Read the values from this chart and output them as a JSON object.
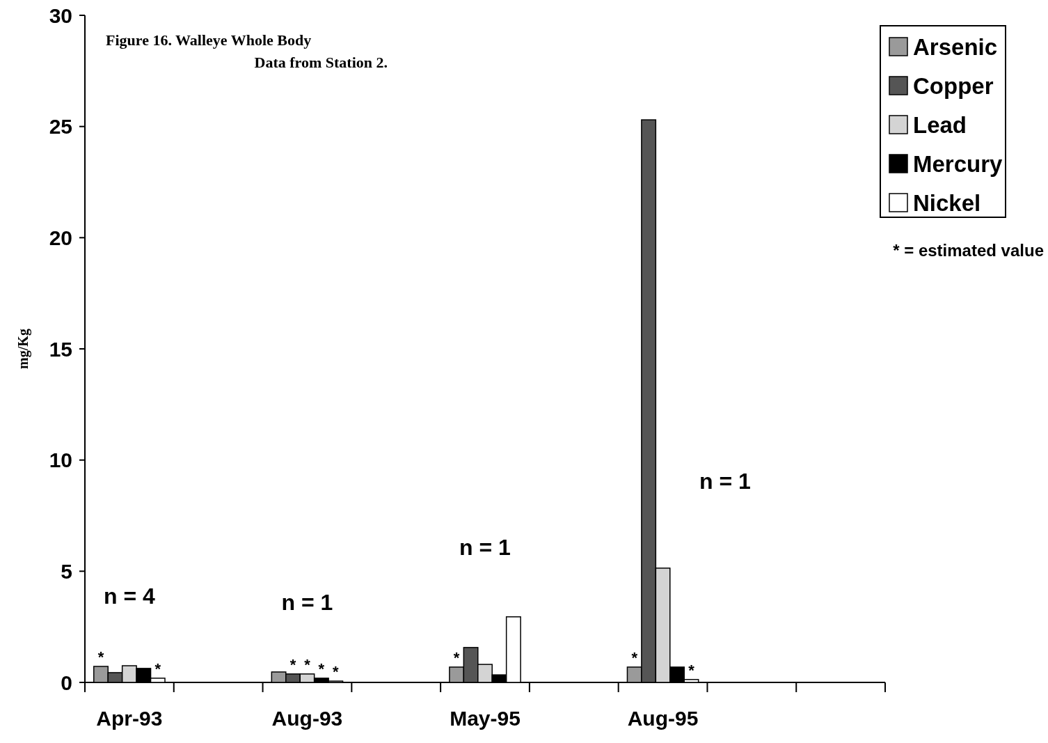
{
  "chart_data": {
    "type": "bar",
    "title": "Figure 16. Walleye Whole Body Data from Station 2.",
    "ylabel": "mg/Kg",
    "categories": [
      "Apr-93",
      null,
      "Aug-93",
      null,
      "May-95",
      null,
      "Aug-95",
      null,
      null
    ],
    "series": [
      {
        "name": "Arsenic",
        "color": "#9a9a9a",
        "values": [
          0.72,
          null,
          0.47,
          null,
          0.69,
          null,
          0.69,
          null,
          null
        ],
        "value_labels": [
          "*",
          null,
          null,
          null,
          "*",
          null,
          "*",
          null,
          null
        ]
      },
      {
        "name": "Copper",
        "color": "#555555",
        "values": [
          0.44,
          null,
          0.38,
          null,
          1.57,
          null,
          25.3,
          null,
          null
        ],
        "value_labels": [
          null,
          null,
          "*",
          null,
          null,
          null,
          null,
          null,
          null
        ]
      },
      {
        "name": "Lead",
        "color": "#d4d4d4",
        "values": [
          0.75,
          null,
          0.38,
          null,
          0.81,
          null,
          5.14,
          null,
          null
        ],
        "value_labels": [
          null,
          null,
          "*",
          null,
          null,
          null,
          null,
          null,
          null
        ]
      },
      {
        "name": "Mercury",
        "color": "#000000",
        "values": [
          0.63,
          null,
          0.19,
          null,
          0.34,
          null,
          0.69,
          null,
          null
        ],
        "value_labels": [
          null,
          null,
          "*",
          null,
          null,
          null,
          null,
          null,
          null
        ]
      },
      {
        "name": "Nickel",
        "color": "#ffffff",
        "values": [
          0.19,
          null,
          0.06,
          null,
          2.95,
          null,
          0.13,
          null,
          null
        ],
        "value_labels": [
          "*",
          null,
          "*",
          null,
          null,
          null,
          "*",
          null,
          null
        ]
      }
    ],
    "ylim": [
      0,
      30
    ],
    "yticks": [
      0,
      5,
      10,
      15,
      20,
      25,
      30
    ],
    "grid": false,
    "legend": "top right",
    "annotations": [
      "n = 4",
      "n = 1",
      "n = 1",
      "n = 1",
      "* = estimated value"
    ]
  }
}
